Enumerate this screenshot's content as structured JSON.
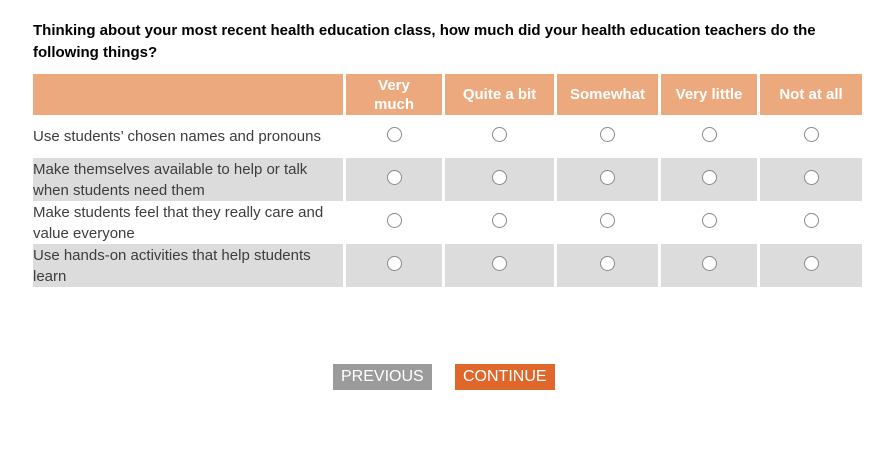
{
  "question": {
    "text": "Thinking about your most recent health education class, how much did your health education teachers do the following things?"
  },
  "matrix": {
    "columns": [
      "Very much",
      "Quite a bit",
      "Somewhat",
      "Very little",
      "Not at all"
    ],
    "rows": [
      {
        "label": "Use students’ chosen names and pronouns",
        "selected": null
      },
      {
        "label": "Make themselves available to help or talk when students need them",
        "selected": null
      },
      {
        "label": "Make students feel that they really care and value everyone",
        "selected": null
      },
      {
        "label": "Use hands-on activities that help students learn",
        "selected": null
      }
    ]
  },
  "buttons": {
    "previous": "PREVIOUS",
    "continue": "CONTINUE"
  },
  "colors": {
    "header_background": "#EBA97D",
    "alternate_row_background": "#DCDCDC",
    "previous_button": "#9B9B9B",
    "continue_button": "#E0672B"
  }
}
